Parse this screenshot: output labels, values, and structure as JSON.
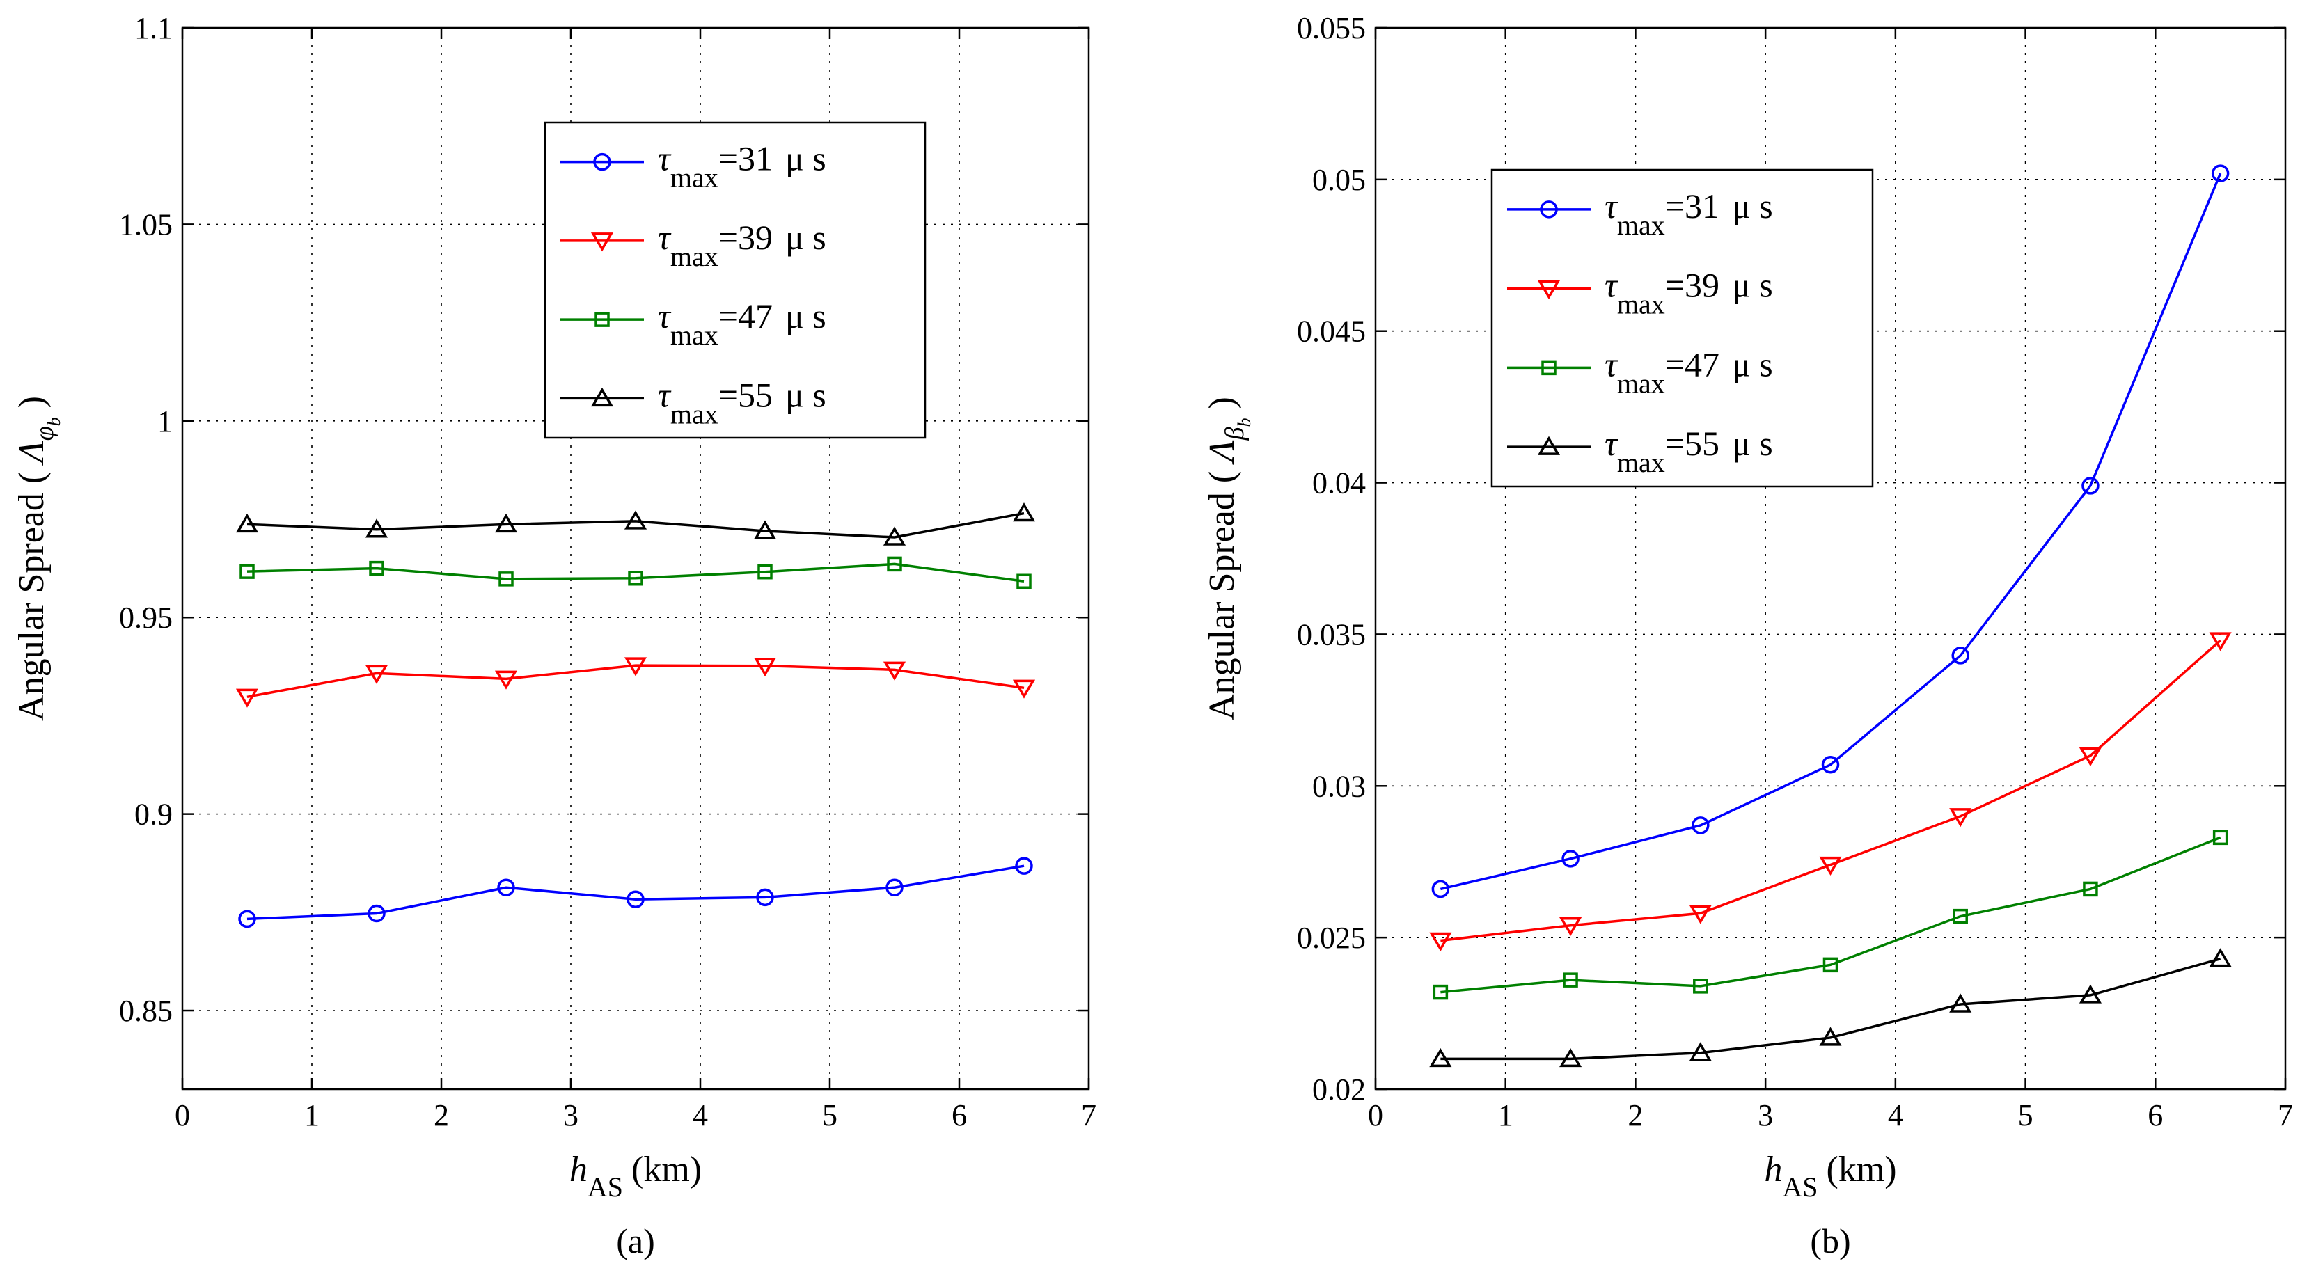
{
  "chart_data": [
    {
      "type": "line",
      "id": "a",
      "caption": "(a)",
      "xlabel": {
        "main": "h",
        "sub": "AS",
        "unit": "(km)"
      },
      "ylabel": {
        "text": "Angular Spread (",
        "symbol": "Λ",
        "sub": "φ",
        "subsub": "b",
        "close": ")"
      },
      "xlim": [
        0,
        7
      ],
      "ylim": [
        0.83,
        1.1
      ],
      "xticks": [
        0,
        1,
        2,
        3,
        4,
        5,
        6,
        7
      ],
      "xtick_labels": [
        "0",
        "1",
        "2",
        "3",
        "4",
        "5",
        "6",
        "7"
      ],
      "yticks": [
        0.85,
        0.9,
        0.95,
        1.0,
        1.05,
        1.1
      ],
      "ytick_labels": [
        "0.85",
        "0.9",
        "0.95",
        "1",
        "1.05",
        "1.1"
      ],
      "grid": true,
      "legend_position": "upper-center",
      "x": [
        0.5,
        1.5,
        2.5,
        3.5,
        4.5,
        5.5,
        6.5
      ],
      "series": [
        {
          "name": "τmax=31 μs",
          "tau": "τ",
          "sub": "max",
          "value": "=31",
          "unit": "μ s",
          "color": "#0000ff",
          "marker": "circle",
          "values": [
            0.8733,
            0.8747,
            0.8813,
            0.8783,
            0.8788,
            0.8813,
            0.8868
          ]
        },
        {
          "name": "τmax=39 μs",
          "tau": "τ",
          "sub": "max",
          "value": "=39",
          "unit": "μ s",
          "color": "#ff0000",
          "marker": "triangle-down",
          "values": [
            0.9298,
            0.9358,
            0.9344,
            0.9378,
            0.9377,
            0.9367,
            0.9321
          ]
        },
        {
          "name": "τmax=47 μs",
          "tau": "τ",
          "sub": "max",
          "value": "=47",
          "unit": "μ s",
          "color": "#008000",
          "marker": "square",
          "values": [
            0.9617,
            0.9625,
            0.9598,
            0.96,
            0.9616,
            0.9636,
            0.9592
          ]
        },
        {
          "name": "τmax=55 μs",
          "tau": "τ",
          "sub": "max",
          "value": "=55",
          "unit": "μ s",
          "color": "#000000",
          "marker": "triangle-up",
          "values": [
            0.9737,
            0.9724,
            0.9737,
            0.9745,
            0.972,
            0.9704,
            0.9765
          ]
        }
      ]
    },
    {
      "type": "line",
      "id": "b",
      "caption": "(b)",
      "xlabel": {
        "main": "h",
        "sub": "AS",
        "unit": "(km)"
      },
      "ylabel": {
        "text": "Angular Spread (",
        "symbol": "Λ",
        "sub": "β",
        "subsub": "b",
        "close": ")"
      },
      "xlim": [
        0,
        7
      ],
      "ylim": [
        0.02,
        0.055
      ],
      "xticks": [
        0,
        1,
        2,
        3,
        4,
        5,
        6,
        7
      ],
      "xtick_labels": [
        "0",
        "1",
        "2",
        "3",
        "4",
        "5",
        "6",
        "7"
      ],
      "yticks": [
        0.02,
        0.025,
        0.03,
        0.035,
        0.04,
        0.045,
        0.05,
        0.055
      ],
      "ytick_labels": [
        "0.02",
        "0.025",
        "0.03",
        "0.035",
        "0.04",
        "0.045",
        "0.05",
        "0.055"
      ],
      "grid": true,
      "legend_position": "upper-left",
      "x": [
        0.5,
        1.5,
        2.5,
        3.5,
        4.5,
        5.5,
        6.5
      ],
      "series": [
        {
          "name": "τmax=31 μs",
          "tau": "τ",
          "sub": "max",
          "value": "=31",
          "unit": "μ s",
          "color": "#0000ff",
          "marker": "circle",
          "values": [
            0.0266,
            0.0276,
            0.0287,
            0.0307,
            0.0343,
            0.0399,
            0.0502
          ]
        },
        {
          "name": "τmax=39 μs",
          "tau": "τ",
          "sub": "max",
          "value": "=39",
          "unit": "μ s",
          "color": "#ff0000",
          "marker": "triangle-down",
          "values": [
            0.0249,
            0.0254,
            0.0258,
            0.0274,
            0.029,
            0.031,
            0.0348
          ]
        },
        {
          "name": "τmax=47 μs",
          "tau": "τ",
          "sub": "max",
          "value": "=47",
          "unit": "μ s",
          "color": "#008000",
          "marker": "square",
          "values": [
            0.0232,
            0.0236,
            0.0234,
            0.0241,
            0.0257,
            0.0266,
            0.0283
          ]
        },
        {
          "name": "τmax=55 μs",
          "tau": "τ",
          "sub": "max",
          "value": "=55",
          "unit": "μ s",
          "color": "#000000",
          "marker": "triangle-up",
          "values": [
            0.021,
            0.021,
            0.0212,
            0.0217,
            0.0228,
            0.0231,
            0.0243
          ]
        }
      ]
    }
  ]
}
